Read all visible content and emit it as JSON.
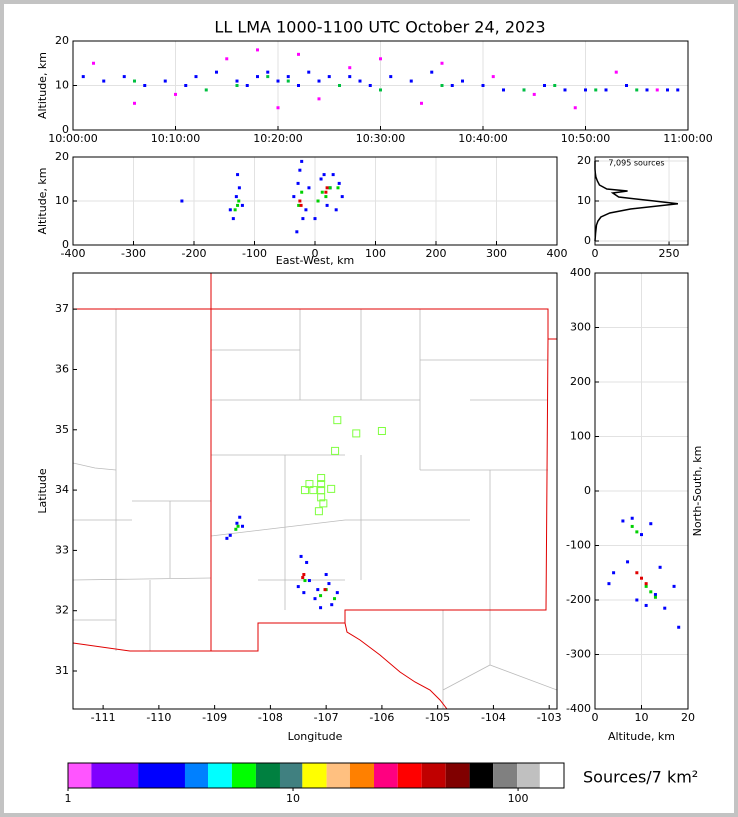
{
  "chart_data": [
    {
      "type": "scatter",
      "title": "LL LMA 1000-1100 UTC October 24, 2023",
      "ylabel": "Altitude, km",
      "xlim": [
        0,
        60
      ],
      "xticks": [
        {
          "value": 0,
          "label": "10:00:00"
        },
        {
          "value": 10,
          "label": "10:10:00"
        },
        {
          "value": 20,
          "label": "10:20:00"
        },
        {
          "value": 30,
          "label": "10:30:00"
        },
        {
          "value": 40,
          "label": "10:40:00"
        },
        {
          "value": 50,
          "label": "10:50:00"
        },
        {
          "value": 60,
          "label": "11:00:00"
        }
      ],
      "ylim": [
        0,
        20
      ],
      "yticks": [
        0,
        10,
        20
      ],
      "grid": true,
      "series": [
        {
          "color": "#0000ff",
          "x": [
            1,
            3,
            5,
            7,
            9,
            11,
            12,
            14,
            16,
            17,
            18,
            19,
            20,
            21,
            22,
            23,
            24,
            25,
            26,
            27,
            28,
            29,
            31,
            33,
            35,
            37,
            38,
            40,
            42,
            44,
            46,
            48,
            50,
            52,
            54,
            56,
            58,
            59
          ],
          "values": [
            12,
            11,
            12,
            10,
            11,
            10,
            12,
            13,
            11,
            10,
            12,
            13,
            11,
            12,
            10,
            13,
            11,
            12,
            10,
            12,
            11,
            10,
            12,
            11,
            13,
            10,
            11,
            10,
            9,
            9,
            10,
            9,
            9,
            9,
            10,
            9,
            9,
            9
          ]
        },
        {
          "color": "#ff00ff",
          "x": [
            2,
            6,
            10,
            15,
            18,
            20,
            22,
            24,
            27,
            30,
            34,
            36,
            41,
            45,
            49,
            53,
            57
          ],
          "values": [
            15,
            6,
            8,
            16,
            18,
            5,
            17,
            7,
            14,
            16,
            6,
            15,
            12,
            8,
            5,
            13,
            9
          ]
        },
        {
          "color": "#00c040",
          "x": [
            6,
            13,
            16,
            19,
            21,
            26,
            30,
            36,
            44,
            47,
            51,
            55
          ],
          "values": [
            11,
            9,
            10,
            12,
            11,
            10,
            9,
            10,
            9,
            10,
            9,
            9
          ]
        }
      ]
    },
    {
      "type": "scatter",
      "xlabel": "East-West, km",
      "ylabel": "Altitude, km",
      "xlim": [
        -400,
        400
      ],
      "xticks": [
        -400,
        -300,
        -200,
        -100,
        0,
        100,
        200,
        300,
        400
      ],
      "ylim": [
        0,
        20
      ],
      "yticks": [
        0,
        10,
        20
      ],
      "grid": true,
      "series": [
        {
          "color": "#0000ff",
          "x": [
            -135,
            -130,
            -125,
            -140,
            -128,
            -120,
            -30,
            -25,
            -20,
            -28,
            -22,
            -35,
            -15,
            -10,
            0,
            5,
            10,
            20,
            30,
            40,
            45,
            35,
            25,
            15,
            -220
          ],
          "values": [
            6,
            11,
            13,
            8,
            16,
            9,
            3,
            17,
            6,
            14,
            19,
            11,
            8,
            13,
            6,
            10,
            15,
            9,
            16,
            14,
            11,
            8,
            13,
            16,
            10
          ]
        },
        {
          "color": "#00d000",
          "x": [
            -132,
            -128,
            -126,
            -27,
            -22,
            5,
            12,
            18,
            25,
            38
          ],
          "values": [
            8,
            9,
            10,
            9,
            12,
            10,
            12,
            11,
            13,
            13
          ]
        },
        {
          "color": "#e00000",
          "x": [
            -25,
            -23,
            18,
            20
          ],
          "values": [
            10,
            9,
            12,
            13
          ]
        }
      ]
    },
    {
      "type": "line",
      "annotation": "7,095 sources",
      "color": "#000000",
      "xlim": [
        0,
        314
      ],
      "xticks": [
        0,
        250
      ],
      "ylim": [
        -1,
        21
      ],
      "yticks": [
        0,
        10,
        20
      ],
      "grid": true,
      "x": [
        0,
        2,
        5,
        10,
        20,
        50,
        120,
        280,
        200,
        80,
        60,
        110,
        40,
        15,
        8,
        3,
        1,
        0,
        0
      ],
      "values": [
        0,
        2,
        4,
        5,
        6,
        7,
        8,
        9.3,
        10,
        11,
        12,
        12.5,
        13,
        14,
        15,
        16,
        17,
        18,
        20
      ]
    },
    {
      "type": "map",
      "xlabel": "Longitude",
      "ylabel": "Latitude",
      "xlim": [
        -111.54,
        -102.86
      ],
      "xticks": [
        -111,
        -110,
        -109,
        -108,
        -107,
        -106,
        -105,
        -104,
        -103
      ],
      "ylim": [
        30.37,
        37.6
      ],
      "yticks": [
        31,
        32,
        33,
        34,
        35,
        36,
        37
      ],
      "grid": false,
      "series": [
        {
          "color": "#0000ff",
          "x": [
            -108.72,
            -108.6,
            -108.55,
            -108.78,
            -108.5,
            -107.5,
            -107.35,
            -107.45,
            -107.3,
            -107.2,
            -107.1,
            -106.9,
            -106.8,
            -107.0,
            -107.15,
            -106.95,
            -107.4
          ],
          "values": [
            33.25,
            33.45,
            33.55,
            33.2,
            33.4,
            32.4,
            32.8,
            32.9,
            32.5,
            32.2,
            32.05,
            32.1,
            32.3,
            32.6,
            32.35,
            32.45,
            32.3
          ]
        },
        {
          "color": "#00d000",
          "x": [
            -108.62,
            -108.58,
            -107.38,
            -107.1,
            -107.0,
            -106.85
          ],
          "values": [
            33.35,
            33.4,
            32.5,
            32.25,
            32.35,
            32.2
          ]
        },
        {
          "color": "#e00000",
          "x": [
            -107.4,
            -107.42,
            -107.02
          ],
          "values": [
            32.6,
            32.55,
            32.35
          ]
        },
        {
          "color": "#80ff40",
          "marker": "square-open",
          "x": [
            -106.8,
            -106.46,
            -106.0,
            -106.84,
            -107.09,
            -107.3,
            -107.09,
            -107.38,
            -107.23,
            -107.09,
            -106.91,
            -107.09,
            -107.05,
            -107.13
          ],
          "values": [
            35.16,
            34.94,
            34.98,
            34.65,
            34.2,
            34.1,
            34.1,
            34.0,
            34.0,
            34.0,
            34.02,
            33.88,
            33.78,
            33.65
          ]
        }
      ]
    },
    {
      "type": "scatter",
      "xlabel": "Altitude, km",
      "ylabel": "North-South, km",
      "ylabel_position": "right",
      "xlim": [
        0,
        20
      ],
      "xticks": [
        0,
        10,
        20
      ],
      "ylim": [
        -400,
        400
      ],
      "yticks": [
        -400,
        -300,
        -200,
        -100,
        0,
        100,
        200,
        300,
        400
      ],
      "grid": true,
      "series": [
        {
          "color": "#0000ff",
          "x": [
            6,
            8,
            10,
            12,
            4,
            7,
            9,
            11,
            13,
            15,
            17,
            3,
            14,
            18
          ],
          "values": [
            -55,
            -50,
            -80,
            -60,
            -150,
            -130,
            -200,
            -210,
            -190,
            -215,
            -175,
            -170,
            -140,
            -250
          ]
        },
        {
          "color": "#00d000",
          "x": [
            8,
            9,
            12,
            13,
            11
          ],
          "values": [
            -65,
            -75,
            -185,
            -195,
            -175
          ]
        },
        {
          "color": "#e00000",
          "x": [
            9,
            10,
            11
          ],
          "values": [
            -150,
            -160,
            -170
          ]
        }
      ]
    },
    {
      "type": "colorbar",
      "label": "Sources/7 km²",
      "log": true,
      "xlim": [
        1,
        160
      ],
      "xticks": [
        1,
        10,
        100
      ],
      "bins": [
        1,
        1.27,
        2.05,
        3.31,
        4.19,
        5.35,
        6.84,
        8.75,
        11.0,
        14.1,
        17.9,
        22.9,
        29.2,
        37.3,
        47.7,
        60.9,
        77.5,
        99,
        125,
        160
      ],
      "colors": [
        "#ff55ff",
        "#8000ff",
        "#0000ff",
        "#0080ff",
        "#00ffff",
        "#00ff00",
        "#008040",
        "#408080",
        "#ffff00",
        "#ffc080",
        "#ff8000",
        "#ff0080",
        "#ff0000",
        "#c00000",
        "#800000",
        "#000000",
        "#808080",
        "#c0c0c0",
        "#ffffff"
      ]
    }
  ]
}
